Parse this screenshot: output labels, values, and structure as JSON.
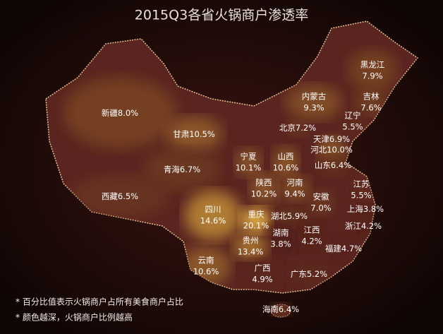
{
  "title": "2015Q3各省火锅商户渗透率",
  "regions": [
    {
      "name": "新疆",
      "value": 8.0,
      "value_label": "8.0%"
    },
    {
      "name": "甘肃",
      "value": 10.5,
      "value_label": "10.5%"
    },
    {
      "name": "青海",
      "value": 6.7,
      "value_label": "6.7%"
    },
    {
      "name": "西藏",
      "value": 6.5,
      "value_label": "6.5%"
    },
    {
      "name": "内蒙古",
      "value": 9.3,
      "value_label": "9.3%"
    },
    {
      "name": "黑龙江",
      "value": 7.9,
      "value_label": "7.9%"
    },
    {
      "name": "吉林",
      "value": 7.6,
      "value_label": "7.6%"
    },
    {
      "name": "辽宁",
      "value": 5.5,
      "value_label": "5.5%"
    },
    {
      "name": "北京",
      "value": 7.2,
      "value_label": "7.2%"
    },
    {
      "name": "天津",
      "value": 6.9,
      "value_label": "6.9%"
    },
    {
      "name": "河北",
      "value": 10.0,
      "value_label": "10.0%"
    },
    {
      "name": "宁夏",
      "value": 10.1,
      "value_label": "10.1%"
    },
    {
      "name": "山西",
      "value": 10.6,
      "value_label": "10.6%"
    },
    {
      "name": "山东",
      "value": 6.4,
      "value_label": "6.4%"
    },
    {
      "name": "陕西",
      "value": 10.2,
      "value_label": "10.2%"
    },
    {
      "name": "河南",
      "value": 9.4,
      "value_label": "9.4%"
    },
    {
      "name": "江苏",
      "value": 5.5,
      "value_label": "5.5%"
    },
    {
      "name": "安徽",
      "value": 7.0,
      "value_label": "7.0%"
    },
    {
      "name": "上海",
      "value": 3.8,
      "value_label": "3.8%"
    },
    {
      "name": "四川",
      "value": 14.6,
      "value_label": "14.6%"
    },
    {
      "name": "重庆",
      "value": 20.1,
      "value_label": "20.1%"
    },
    {
      "name": "湖北",
      "value": 5.9,
      "value_label": "5.9%"
    },
    {
      "name": "浙江",
      "value": 4.2,
      "value_label": "4.2%"
    },
    {
      "name": "湖南",
      "value": 3.8,
      "value_label": "3.8%"
    },
    {
      "name": "江西",
      "value": 4.2,
      "value_label": "4.2%"
    },
    {
      "name": "贵州",
      "value": 13.4,
      "value_label": "13.4%"
    },
    {
      "name": "福建",
      "value": 4.7,
      "value_label": "4.7%"
    },
    {
      "name": "云南",
      "value": 10.6,
      "value_label": "10.6%"
    },
    {
      "name": "广西",
      "value": 4.9,
      "value_label": "4.9%"
    },
    {
      "name": "广东",
      "value": 5.2,
      "value_label": "5.2%"
    },
    {
      "name": "海南",
      "value": 6.4,
      "value_label": "6.4%"
    }
  ],
  "notes": [
    "* 百分比值表示火锅商户占所有美食商户占比",
    "* 颜色越深，火锅商户比例越高"
  ]
}
